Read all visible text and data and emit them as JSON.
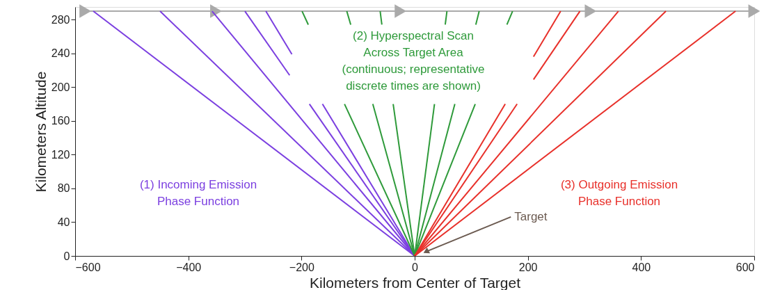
{
  "chart_data": {
    "type": "line",
    "xlabel": "Kilometers from Center of Target",
    "ylabel": "Kilometers Altitude",
    "xlim": [
      -600,
      600
    ],
    "ylim": [
      0,
      295
    ],
    "xticks": [
      -600,
      -400,
      -200,
      0,
      200,
      400,
      600
    ],
    "yticks": [
      0,
      40,
      80,
      120,
      160,
      200,
      240,
      280
    ],
    "grid": false,
    "line_style": "solid",
    "series": [
      {
        "color": "#aaaaaa",
        "marker": "triangle",
        "x": [
          -582,
          -351,
          -25,
          311,
          600
        ],
        "values": [
          290,
          290,
          290,
          290,
          290
        ]
      },
      {
        "color": "#7b3fe0",
        "x": [
          0,
          -568
        ],
        "values": [
          0,
          290
        ]
      },
      {
        "color": "#7b3fe0",
        "x": [
          0,
          -450
        ],
        "values": [
          0,
          290
        ]
      },
      {
        "color": "#7b3fe0",
        "x": [
          0,
          -358
        ],
        "values": [
          0,
          290
        ]
      },
      {
        "color": "#7b3fe0",
        "x": [
          0,
          -186,
          -203,
          -221,
          -300
        ],
        "values": [
          0,
          180,
          null,
          214,
          290
        ]
      },
      {
        "color": "#7b3fe0",
        "x": [
          0,
          -163,
          -190,
          -217,
          -263
        ],
        "values": [
          0,
          180,
          null,
          239,
          290
        ]
      },
      {
        "color": "#2e9a3a",
        "x": [
          0,
          -124,
          -156,
          -188,
          -199
        ],
        "values": [
          0,
          180,
          null,
          274,
          290
        ]
      },
      {
        "color": "#2e9a3a",
        "x": [
          0,
          -74,
          -94,
          -113,
          -120
        ],
        "values": [
          0,
          180,
          null,
          274,
          290
        ]
      },
      {
        "color": "#2e9a3a",
        "x": [
          0,
          -38,
          -48,
          -58,
          -61
        ],
        "values": [
          0,
          180,
          null,
          274,
          290
        ]
      },
      {
        "color": "#2e9a3a",
        "x": [
          0,
          35,
          45,
          54,
          57
        ],
        "values": [
          0,
          180,
          null,
          274,
          290
        ]
      },
      {
        "color": "#2e9a3a",
        "x": [
          0,
          71,
          90,
          108,
          114
        ],
        "values": [
          0,
          180,
          null,
          274,
          290
        ]
      },
      {
        "color": "#2e9a3a",
        "x": [
          0,
          107,
          135,
          163,
          173
        ],
        "values": [
          0,
          180,
          null,
          274,
          290
        ]
      },
      {
        "color": "#e8302a",
        "x": [
          0,
          160,
          185,
          210,
          258
        ],
        "values": [
          0,
          180,
          null,
          236,
          290
        ]
      },
      {
        "color": "#e8302a",
        "x": [
          0,
          181,
          196,
          210,
          292
        ],
        "values": [
          0,
          180,
          null,
          209,
          290
        ]
      },
      {
        "color": "#e8302a",
        "x": [
          0,
          360
        ],
        "values": [
          0,
          290
        ]
      },
      {
        "color": "#e8302a",
        "x": [
          0,
          444
        ],
        "values": [
          0,
          290
        ]
      },
      {
        "color": "#e8302a",
        "x": [
          0,
          567
        ],
        "values": [
          0,
          290
        ]
      }
    ],
    "annotations": [
      "(1)  Incoming  Emission\nPhase  Function",
      "(2)  Hyperspectral  Scan\nAcross  Target  Area\n(continuous;  representative\ndiscrete  times  are  shown)",
      "(3)  Outgoing  Emission\nPhase  Function",
      {
        "text": "Target",
        "x": 20,
        "y": 5
      }
    ]
  }
}
